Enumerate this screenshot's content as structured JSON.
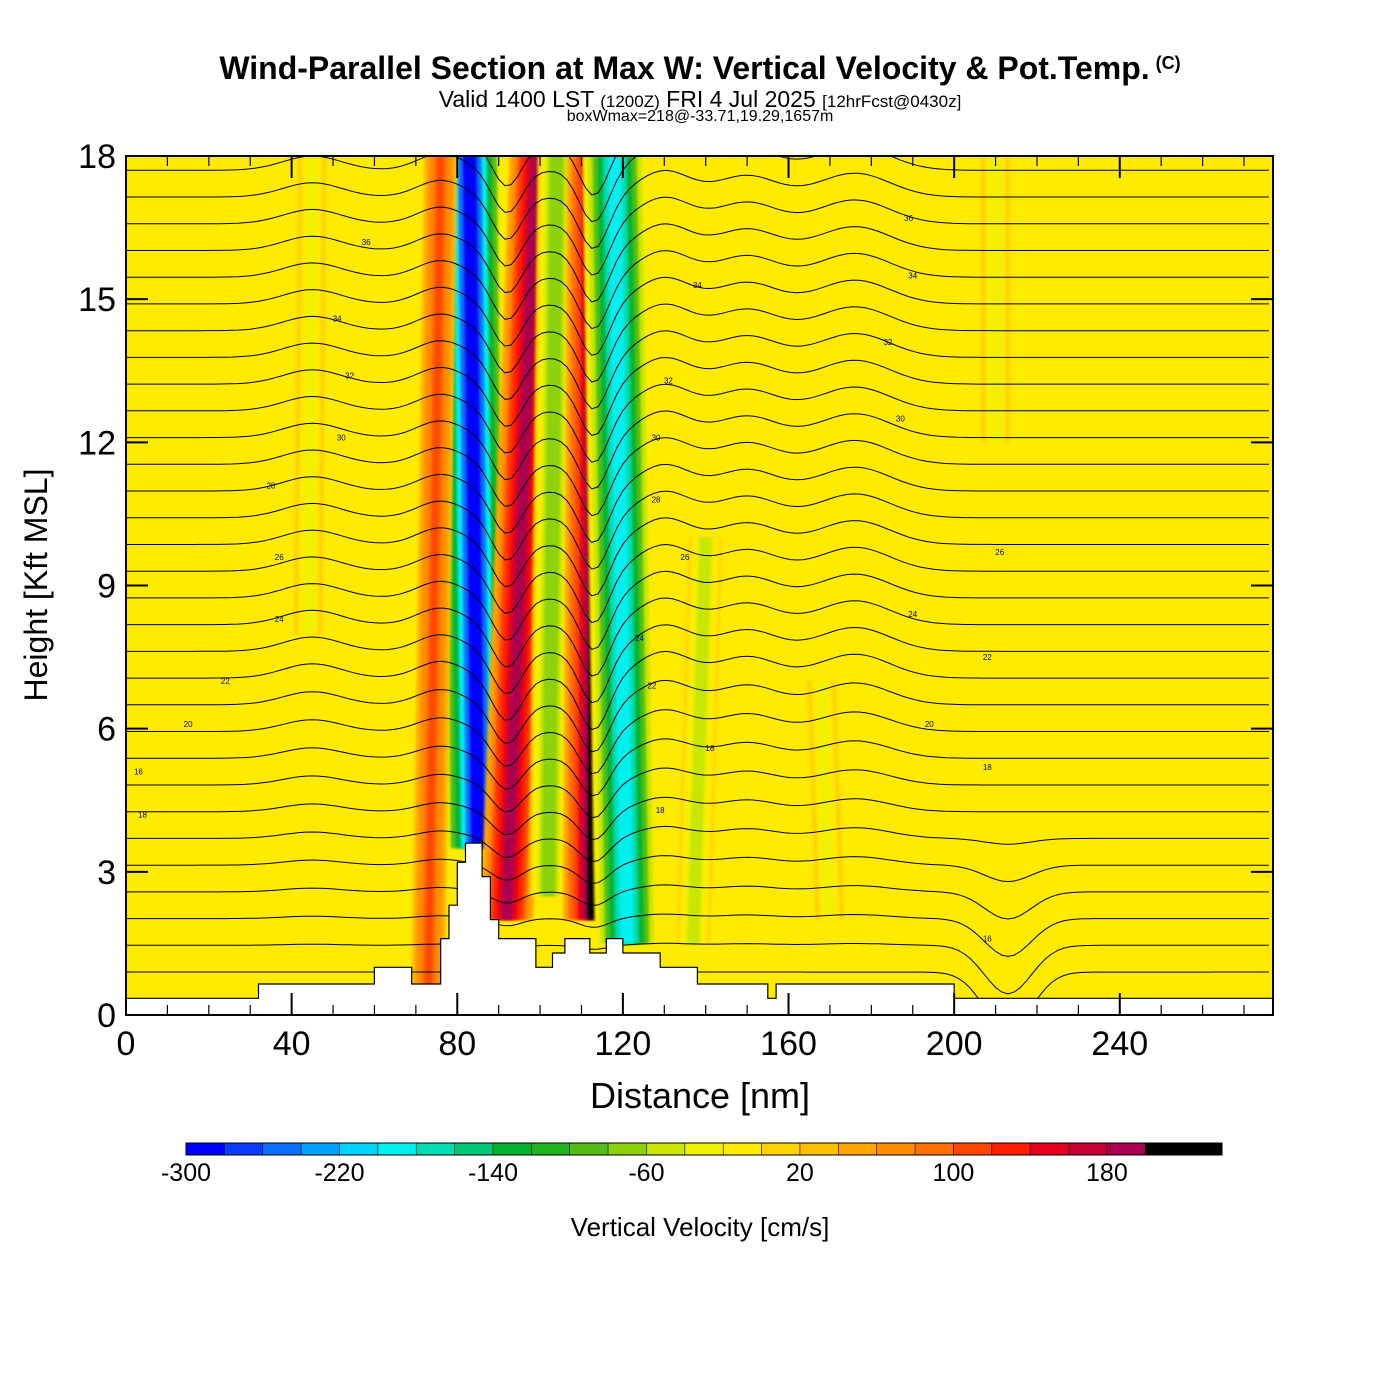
{
  "header": {
    "title": "Wind-Parallel Section at Max W: Vertical Velocity & Pot.Temp.",
    "copyright": "(C)",
    "valid_prefix": "Valid 1400 LST",
    "valid_utc": "(1200Z)",
    "valid_date": "FRI 4 Jul 2025",
    "forecast": "[12hrFcst@0430z]",
    "box_wmax": "boxWmax=218@-33.71,19.29,1657m"
  },
  "chart_data": {
    "type": "heatmap",
    "xlabel": "Distance [nm]",
    "ylabel": "Height [Kft MSL]",
    "xlim": [
      0,
      277
    ],
    "ylim": [
      0,
      18
    ],
    "xticks": [
      0,
      40,
      80,
      120,
      160,
      200,
      240
    ],
    "yticks": [
      0,
      3,
      6,
      9,
      12,
      15,
      18
    ],
    "colorbar": {
      "title": "Vertical Velocity [cm/s]",
      "min": -300,
      "max": 240,
      "step": 20,
      "tick_labels": [
        -300,
        -220,
        -140,
        -60,
        20,
        100,
        180
      ],
      "colors": [
        "#0000ff",
        "#0a3cff",
        "#0a6eff",
        "#00a0ff",
        "#00d2ff",
        "#00f0f0",
        "#00dcb4",
        "#00c878",
        "#00b432",
        "#1eb41e",
        "#50be14",
        "#8cd20a",
        "#c8e600",
        "#f0f000",
        "#ffeb00",
        "#ffd200",
        "#ffbe00",
        "#ffa500",
        "#ff8c00",
        "#ff6e00",
        "#ff4600",
        "#ff1e00",
        "#e6001e",
        "#c80032",
        "#aa0050"
      ]
    },
    "max_w": {
      "value": 218,
      "units": "cm/s",
      "lat": -33.71,
      "lon": 19.29,
      "height_m": 1657
    },
    "vertical_velocity_features": [
      {
        "name": "strong downdraft",
        "x_bottom": 85,
        "x_top": 83,
        "y_from": 3.5,
        "y_to": 18,
        "w_min": -300
      },
      {
        "name": "strong updraft",
        "x_bottom": 92,
        "x_top": 99,
        "y_from": 2,
        "y_to": 18,
        "w_max": 180
      },
      {
        "name": "downdraft",
        "x_bottom": 102,
        "x_top": 104,
        "y_from": 2.5,
        "y_to": 18,
        "w_min": -80
      },
      {
        "name": "max updraft",
        "x_bottom": 113,
        "x_top": 114,
        "y_from": 2,
        "y_to": 18,
        "w_max": 218
      },
      {
        "name": "downdraft",
        "x_bottom": 121,
        "x_top": 118,
        "y_from": 1.5,
        "y_to": 18,
        "w_min": -200
      },
      {
        "name": "updraft",
        "x_bottom": 73,
        "x_top": 76,
        "y_from": 0.5,
        "y_to": 18,
        "w_max": 100
      },
      {
        "name": "weak downdraft",
        "x_bottom": 137,
        "x_top": 140,
        "y_from": 1.5,
        "y_to": 10,
        "w_min": -60
      },
      {
        "name": "weak downdraft",
        "x_bottom": 170,
        "x_top": 168,
        "y_from": 2,
        "y_to": 7,
        "w_min": -40
      },
      {
        "name": "weak downdraft",
        "x_bottom": 44,
        "x_top": 45,
        "y_from": 8,
        "y_to": 18,
        "w_min": -40
      },
      {
        "name": "weak downdraft",
        "x_bottom": 210,
        "x_top": 210,
        "y_from": 12,
        "y_to": 18,
        "w_min": -40
      }
    ],
    "theta_contours": [
      {
        "label": "16",
        "x": 3,
        "y": 5.1
      },
      {
        "label": "18",
        "x": 4,
        "y": 4.2
      },
      {
        "label": "20",
        "x": 15,
        "y": 6.1
      },
      {
        "label": "22",
        "x": 24,
        "y": 7.0
      },
      {
        "label": "24",
        "x": 37,
        "y": 8.3
      },
      {
        "label": "26",
        "x": 37,
        "y": 9.6
      },
      {
        "label": "28",
        "x": 35,
        "y": 11.1
      },
      {
        "label": "30",
        "x": 52,
        "y": 12.1
      },
      {
        "label": "32",
        "x": 54,
        "y": 13.4
      },
      {
        "label": "34",
        "x": 51,
        "y": 14.6
      },
      {
        "label": "36",
        "x": 58,
        "y": 16.2
      },
      {
        "label": "18",
        "x": 141,
        "y": 5.6
      },
      {
        "label": "18",
        "x": 129,
        "y": 4.3
      },
      {
        "label": "22",
        "x": 127,
        "y": 6.9
      },
      {
        "label": "24",
        "x": 124,
        "y": 7.9
      },
      {
        "label": "26",
        "x": 135,
        "y": 9.6
      },
      {
        "label": "28",
        "x": 128,
        "y": 10.8
      },
      {
        "label": "30",
        "x": 128,
        "y": 12.1
      },
      {
        "label": "32",
        "x": 131,
        "y": 13.3
      },
      {
        "label": "34",
        "x": 138,
        "y": 15.3
      },
      {
        "label": "30",
        "x": 187,
        "y": 12.5
      },
      {
        "label": "32",
        "x": 184,
        "y": 14.1
      },
      {
        "label": "34",
        "x": 190,
        "y": 15.5
      },
      {
        "label": "36",
        "x": 189,
        "y": 16.7
      },
      {
        "label": "26",
        "x": 211,
        "y": 9.7
      },
      {
        "label": "24",
        "x": 190,
        "y": 8.4
      },
      {
        "label": "22",
        "x": 208,
        "y": 7.5
      },
      {
        "label": "20",
        "x": 194,
        "y": 6.1
      },
      {
        "label": "18",
        "x": 208,
        "y": 5.2
      },
      {
        "label": "16",
        "x": 208,
        "y": 1.6
      }
    ],
    "terrain": [
      [
        0,
        0.35
      ],
      [
        32,
        0.35
      ],
      [
        32,
        0.65
      ],
      [
        60,
        0.65
      ],
      [
        60,
        1.0
      ],
      [
        69,
        1.0
      ],
      [
        69,
        0.65
      ],
      [
        76,
        0.65
      ],
      [
        76,
        1.6
      ],
      [
        78,
        1.6
      ],
      [
        78,
        2.3
      ],
      [
        80,
        2.3
      ],
      [
        80,
        3.2
      ],
      [
        82,
        3.2
      ],
      [
        82,
        3.6
      ],
      [
        86,
        3.6
      ],
      [
        86,
        2.9
      ],
      [
        88,
        2.9
      ],
      [
        88,
        2.0
      ],
      [
        90,
        2.0
      ],
      [
        90,
        1.6
      ],
      [
        99,
        1.6
      ],
      [
        99,
        1.0
      ],
      [
        103,
        1.0
      ],
      [
        103,
        1.3
      ],
      [
        106,
        1.3
      ],
      [
        106,
        1.6
      ],
      [
        112,
        1.6
      ],
      [
        112,
        1.3
      ],
      [
        116,
        1.3
      ],
      [
        116,
        1.6
      ],
      [
        120,
        1.6
      ],
      [
        120,
        1.3
      ],
      [
        129,
        1.3
      ],
      [
        129,
        1.0
      ],
      [
        138,
        1.0
      ],
      [
        138,
        0.65
      ],
      [
        155,
        0.65
      ],
      [
        155,
        0.35
      ],
      [
        157,
        0.35
      ],
      [
        157,
        0.65
      ],
      [
        200,
        0.65
      ],
      [
        200,
        0.35
      ],
      [
        277,
        0.35
      ]
    ]
  }
}
